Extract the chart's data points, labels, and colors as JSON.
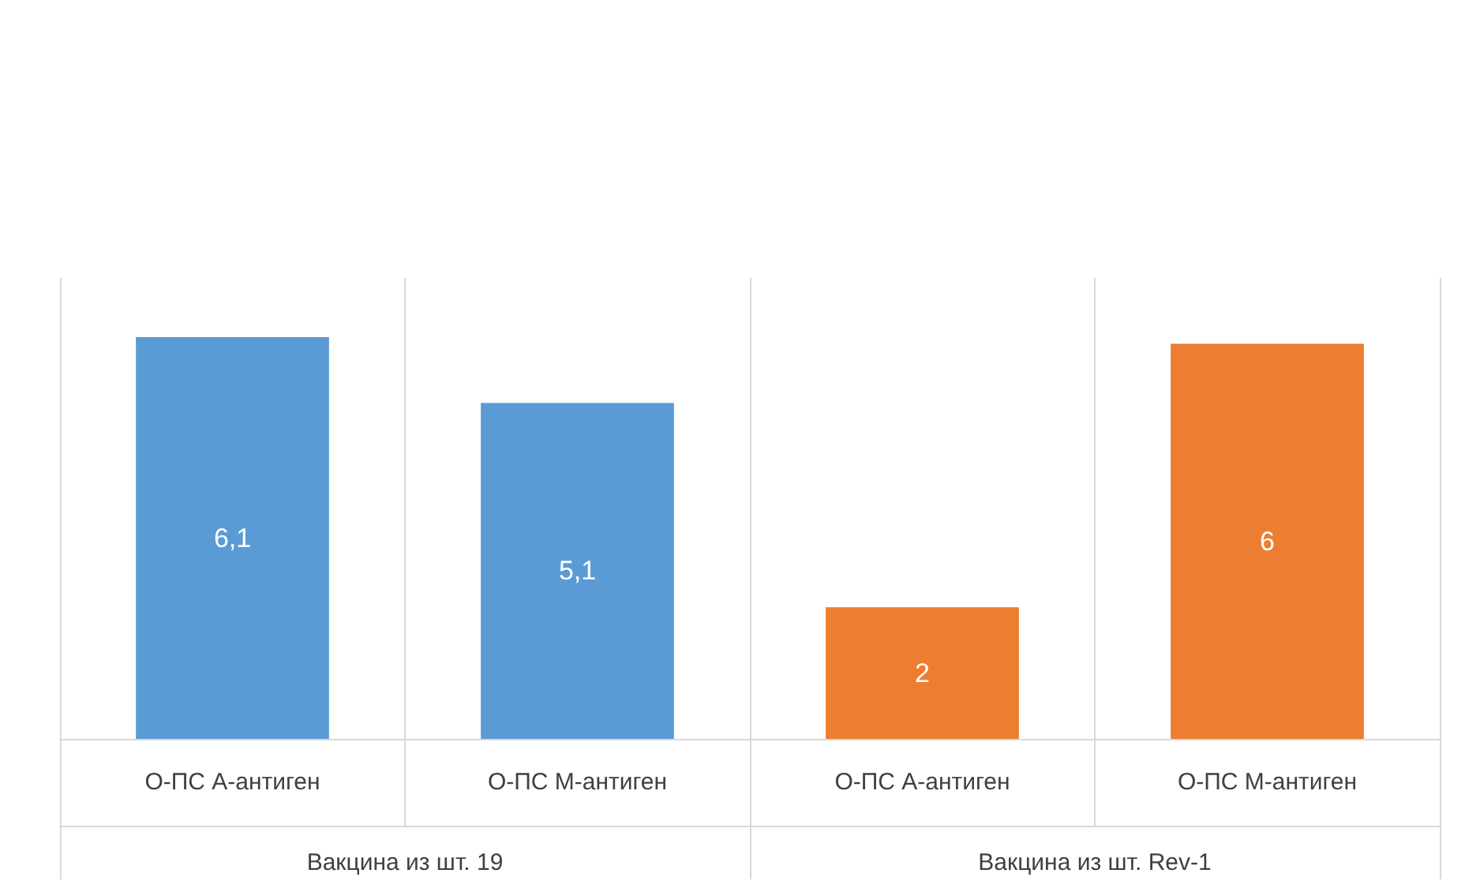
{
  "chart_data": {
    "type": "bar",
    "categories": [
      "О-ПС А-антиген",
      "О-ПС М-антиген",
      "О-ПС А-антиген",
      "О-ПС М-антиген"
    ],
    "values": [
      6.1,
      5.1,
      2,
      6
    ],
    "colors": [
      "#5b9bd5",
      "#5b9bd5",
      "#ed7d31",
      "#ed7d31"
    ],
    "value_labels": [
      "6,1",
      "5,1",
      "2",
      "6"
    ],
    "annotations": [
      "Вакцина из шт. 19",
      "Вакцина из шт. Rev-1"
    ],
    "grid": "x"
  }
}
